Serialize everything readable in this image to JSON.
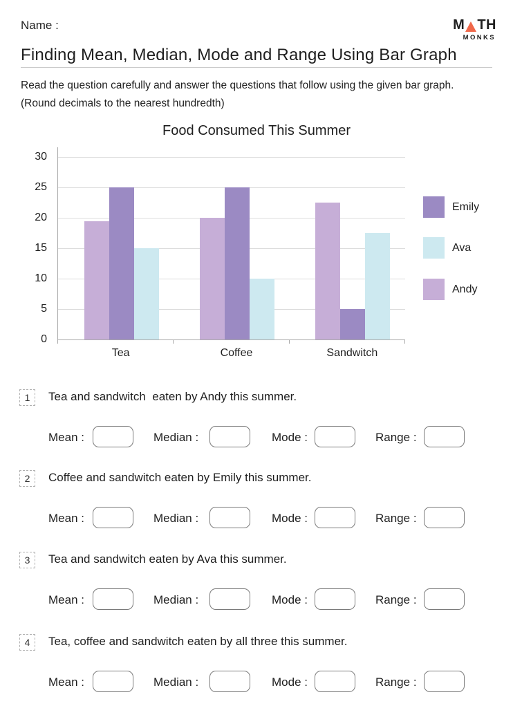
{
  "header": {
    "name_label": "Name :",
    "logo": {
      "m": "M",
      "th": "TH",
      "monks": "MONKS",
      "triangle_color": "#f0684a"
    },
    "title": "Finding Mean, Median, Mode and Range Using Bar Graph",
    "instructions_line1": "Read the question carefully and answer the questions that follow using the given bar graph.",
    "instructions_line2": "(Round decimals to the nearest hundredth)"
  },
  "chart_data": {
    "type": "bar",
    "title": "Food Consumed This Summer",
    "categories": [
      "Tea",
      "Coffee",
      "Sandwitch"
    ],
    "series": [
      {
        "name": "Andy",
        "color": "#c6aed7",
        "values": [
          19.4,
          20,
          22.5
        ]
      },
      {
        "name": "Emily",
        "color": "#9b8ac3",
        "values": [
          25,
          25,
          5
        ]
      },
      {
        "name": "Ava",
        "color": "#cde9f0",
        "values": [
          15,
          10,
          17.5
        ]
      }
    ],
    "legend": [
      {
        "name": "Emily",
        "color": "#9b8ac3"
      },
      {
        "name": "Ava",
        "color": "#cde9f0"
      },
      {
        "name": "Andy",
        "color": "#c6aed7"
      }
    ],
    "y_ticks": [
      0,
      5,
      10,
      15,
      20,
      25,
      30
    ],
    "ylim": [
      0,
      30
    ],
    "xlabel": "",
    "ylabel": "",
    "grid": true,
    "legend_position": "right"
  },
  "questions": [
    {
      "num": "1",
      "text": "Tea and sandwitch  eaten by Andy this summer."
    },
    {
      "num": "2",
      "text": "Coffee and sandwitch eaten by Emily this summer."
    },
    {
      "num": "3",
      "text": "Tea and sandwitch eaten by Ava this summer."
    },
    {
      "num": "4",
      "text": "Tea, coffee and sandwitch eaten by all three this summer."
    }
  ],
  "answers": {
    "labels": [
      "Mean :",
      "Median :",
      "Mode :",
      "Range :"
    ],
    "value": ""
  },
  "colors": {
    "axis": "#a9a9a9",
    "gridline": "#dcdcdc",
    "text": "#1f1f1f",
    "rule": "#c9c9c9",
    "answer_box_border": "#7a7a7a",
    "question_box_border": "#b0b0b0",
    "logo_triangle": "#f0684a"
  }
}
